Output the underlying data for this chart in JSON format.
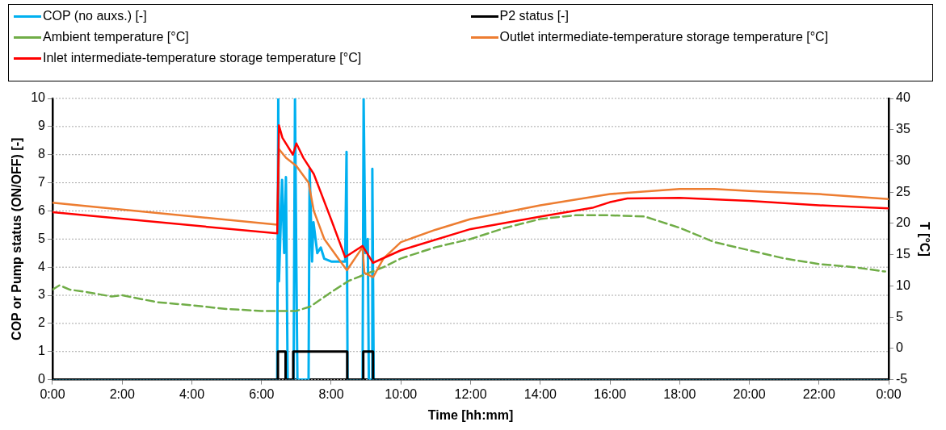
{
  "chart_data": {
    "type": "line",
    "xlabel": "Time [hh:mm]",
    "ylabel": "COP or Pump status (ON/OFF) [-]",
    "y2label": "T [°C]",
    "xlim": [
      0,
      24
    ],
    "xticks": [
      {
        "value": 0,
        "label": "0:00"
      },
      {
        "value": 2,
        "label": "2:00"
      },
      {
        "value": 4,
        "label": "4:00"
      },
      {
        "value": 6,
        "label": "6:00"
      },
      {
        "value": 8,
        "label": "8:00"
      },
      {
        "value": 10,
        "label": "10:00"
      },
      {
        "value": 12,
        "label": "12:00"
      },
      {
        "value": 14,
        "label": "14:00"
      },
      {
        "value": 16,
        "label": "16:00"
      },
      {
        "value": 18,
        "label": "18:00"
      },
      {
        "value": 20,
        "label": "20:00"
      },
      {
        "value": 22,
        "label": "22:00"
      },
      {
        "value": 24,
        "label": "0:00"
      }
    ],
    "ylim": [
      0,
      10
    ],
    "yticks": [
      0,
      1,
      2,
      3,
      4,
      5,
      6,
      7,
      8,
      9,
      10
    ],
    "y2lim": [
      -5,
      40
    ],
    "y2ticks": [
      -5,
      0,
      5,
      10,
      15,
      20,
      25,
      30,
      35,
      40
    ],
    "grid": "y",
    "legend": "top",
    "marker": "none",
    "line_style": "solid",
    "series": [
      {
        "name": "COP (no auxs.) [-]",
        "color": "#00b0f0",
        "x": [
          0,
          6.45,
          6.48,
          6.5,
          6.59,
          6.65,
          6.7,
          6.75,
          6.92,
          6.96,
          7.0,
          7.03,
          7.35,
          7.38,
          7.45,
          7.49,
          7.6,
          7.7,
          7.8,
          8.0,
          8.4,
          8.44,
          8.47,
          8.9,
          8.93,
          8.98,
          9.05,
          9.08,
          9.16,
          9.18,
          9.22,
          24
        ],
        "values": [
          0,
          0,
          10,
          3.5,
          7.1,
          4.5,
          7.2,
          0,
          0,
          10,
          4,
          0,
          0,
          7.5,
          4.2,
          5.6,
          4.5,
          4.7,
          4.3,
          4.2,
          4.2,
          8.1,
          0,
          0,
          10,
          4.5,
          5,
          0,
          0,
          7.5,
          0,
          0
        ]
      },
      {
        "name": "P2 status [-]",
        "color": "#000000",
        "x": [
          0,
          6.47,
          6.47,
          6.69,
          6.69,
          6.91,
          6.91,
          8.46,
          8.46,
          8.92,
          8.92,
          9.2,
          9.2,
          24
        ],
        "values": [
          0,
          0,
          1,
          1,
          0,
          0,
          1,
          1,
          0,
          0,
          1,
          1,
          0,
          0
        ]
      },
      {
        "name": "Ambient temperature [°C]",
        "color": "#70ad47",
        "axis": "y2",
        "line_style": "dashed",
        "x": [
          0,
          0.2,
          0.5,
          1,
          1.7,
          2,
          3,
          4,
          5,
          6,
          7,
          7.4,
          8,
          8.5,
          9,
          9.5,
          10,
          11,
          12,
          13,
          14,
          15,
          16,
          17,
          18,
          19,
          20,
          21,
          22,
          23,
          23.9
        ],
        "values": [
          9.4,
          10.1,
          9.4,
          9,
          8.3,
          8.5,
          7.4,
          6.9,
          6.3,
          6,
          6,
          6.7,
          9,
          10.8,
          11.9,
          13,
          14.4,
          16.2,
          17.5,
          19.3,
          20.7,
          21.3,
          21.3,
          21.1,
          19.3,
          17,
          15.7,
          14.4,
          13.5,
          13,
          12.3
        ]
      },
      {
        "name": "Outlet intermediate-temperature storage temperature [°C]",
        "color": "#ed7d31",
        "axis": "y2",
        "x": [
          0,
          6.45,
          6.5,
          6.7,
          7,
          7.35,
          7.5,
          7.8,
          8.2,
          8.45,
          8.9,
          8.95,
          9.2,
          9.5,
          10,
          11,
          12,
          14,
          16,
          18,
          19,
          20,
          22,
          24
        ],
        "values": [
          23.3,
          19.8,
          31.9,
          30.5,
          29.2,
          26.5,
          22,
          17.5,
          14.4,
          12.5,
          16.2,
          12.1,
          11.4,
          14.4,
          17,
          19,
          20.7,
          22.9,
          24.7,
          25.5,
          25.5,
          25.2,
          24.7,
          23.9
        ]
      },
      {
        "name": "Inlet intermediate-temperature storage temperature [°C]",
        "color": "#ff0000",
        "axis": "y2",
        "x": [
          0,
          6.45,
          6.5,
          6.6,
          6.9,
          7,
          7.2,
          7.5,
          8,
          8.4,
          8.9,
          9.2,
          10,
          12,
          14,
          15.5,
          16,
          16.5,
          18,
          20,
          22,
          24
        ],
        "values": [
          21.8,
          18.4,
          35.7,
          33.7,
          31,
          32.8,
          30.5,
          27.9,
          20.6,
          14.6,
          16.4,
          13.7,
          15.7,
          19.1,
          21.1,
          22.5,
          23.4,
          24,
          24.1,
          23.6,
          22.9,
          22.4
        ]
      }
    ]
  }
}
